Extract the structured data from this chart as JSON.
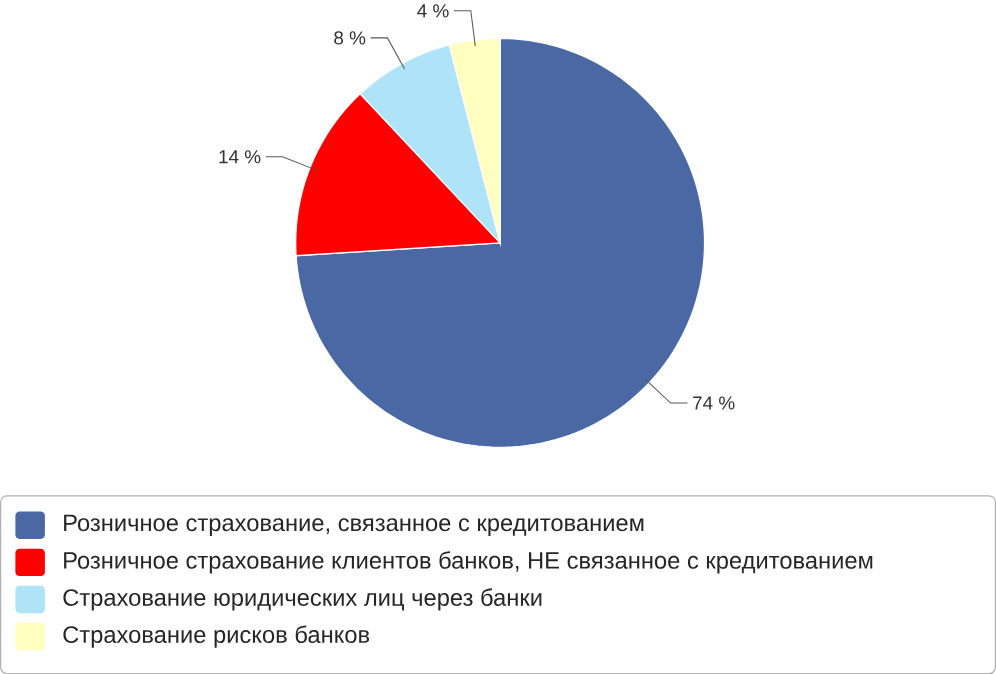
{
  "chart_data": {
    "type": "pie",
    "categories": [
      "Розничное страхование, связанное с кредитованием",
      "Розничное страхование клиентов банков, НЕ связанное с кредитованием",
      "Страхование юридических лиц через банки",
      "Страхование рисков банков"
    ],
    "values": [
      74,
      14,
      8,
      4
    ],
    "colors": [
      "#4a69a4",
      "#ff0000",
      "#aee3f8",
      "#ffffc0"
    ],
    "value_labels": [
      "74 %",
      "14 %",
      "8 %",
      "4 %"
    ],
    "legend": "bottom"
  }
}
